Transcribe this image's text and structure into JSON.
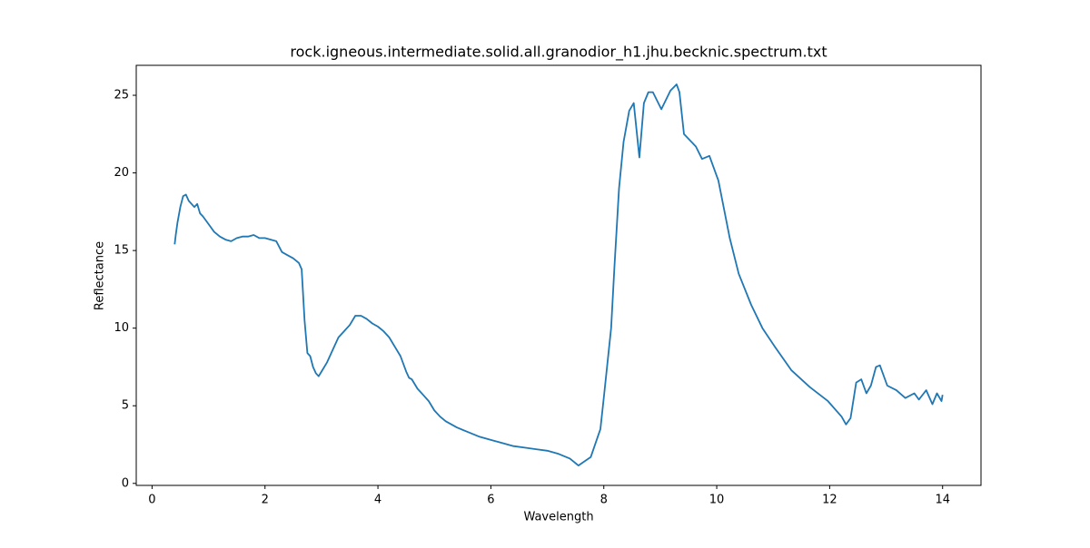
{
  "chart_data": {
    "type": "line",
    "title": "rock.igneous.intermediate.solid.all.granodior_h1.jhu.becknic.spectrum.txt",
    "x_label": "Wavelength",
    "y_label": "Reflectance",
    "xlim": [
      -0.28,
      14.68
    ],
    "ylim": [
      -0.13,
      26.93
    ],
    "xticks": [
      0,
      2,
      4,
      6,
      8,
      10,
      12,
      14
    ],
    "yticks": [
      0,
      5,
      10,
      15,
      20,
      25
    ],
    "series": [
      {
        "color": "#1f77b4",
        "x": [
          0.4,
          0.42,
          0.45,
          0.5,
          0.55,
          0.6,
          0.65,
          0.7,
          0.75,
          0.8,
          0.85,
          0.9,
          1.0,
          1.1,
          1.2,
          1.3,
          1.4,
          1.5,
          1.6,
          1.7,
          1.8,
          1.9,
          2.0,
          2.1,
          2.2,
          2.3,
          2.4,
          2.5,
          2.6,
          2.65,
          2.7,
          2.75,
          2.8,
          2.85,
          2.9,
          2.95,
          3.0,
          3.1,
          3.2,
          3.3,
          3.4,
          3.5,
          3.6,
          3.7,
          3.8,
          3.9,
          4.0,
          4.1,
          4.2,
          4.3,
          4.4,
          4.5,
          4.55,
          4.6,
          4.7,
          4.8,
          4.9,
          5.0,
          5.1,
          5.2,
          5.4,
          5.6,
          5.8,
          6.0,
          6.2,
          6.4,
          6.6,
          6.8,
          7.0,
          7.2,
          7.4,
          7.55,
          7.77,
          7.94,
          8.0,
          8.13,
          8.19,
          8.27,
          8.35,
          8.45,
          8.53,
          8.63,
          8.71,
          8.79,
          8.87,
          9.02,
          9.18,
          9.29,
          9.34,
          9.42,
          9.63,
          9.74,
          9.87,
          10.03,
          10.23,
          10.39,
          10.61,
          10.81,
          11.03,
          11.32,
          11.65,
          11.97,
          12.21,
          12.29,
          12.37,
          12.47,
          12.56,
          12.65,
          12.73,
          12.82,
          12.89,
          13.02,
          13.18,
          13.34,
          13.5,
          13.58,
          13.71,
          13.82,
          13.9,
          13.98,
          14.0
        ],
        "values": [
          15.4,
          16.0,
          16.8,
          17.8,
          18.5,
          18.6,
          18.2,
          18.0,
          17.8,
          18.0,
          17.4,
          17.2,
          16.7,
          16.2,
          15.9,
          15.7,
          15.6,
          15.8,
          15.9,
          15.9,
          16.0,
          15.8,
          15.8,
          15.7,
          15.6,
          14.9,
          14.7,
          14.5,
          14.2,
          13.8,
          10.5,
          8.4,
          8.2,
          7.5,
          7.1,
          6.9,
          7.2,
          7.8,
          8.6,
          9.4,
          9.8,
          10.2,
          10.8,
          10.8,
          10.6,
          10.3,
          10.1,
          9.8,
          9.4,
          8.8,
          8.2,
          7.2,
          6.8,
          6.7,
          6.1,
          5.7,
          5.3,
          4.7,
          4.3,
          4.0,
          3.6,
          3.3,
          3.0,
          2.8,
          2.6,
          2.4,
          2.3,
          2.2,
          2.1,
          1.9,
          1.6,
          1.15,
          1.7,
          3.5,
          5.5,
          10.0,
          14.0,
          19.0,
          22.0,
          24.0,
          24.5,
          21.0,
          24.5,
          25.2,
          25.2,
          24.1,
          25.3,
          25.7,
          25.2,
          22.5,
          21.7,
          20.9,
          21.1,
          19.5,
          15.8,
          13.5,
          11.5,
          10.0,
          8.8,
          7.3,
          6.2,
          5.3,
          4.3,
          3.8,
          4.2,
          6.5,
          6.7,
          5.8,
          6.3,
          7.5,
          7.6,
          6.3,
          6.0,
          5.5,
          5.8,
          5.4,
          6.0,
          5.1,
          5.8,
          5.3,
          5.7
        ]
      }
    ]
  }
}
